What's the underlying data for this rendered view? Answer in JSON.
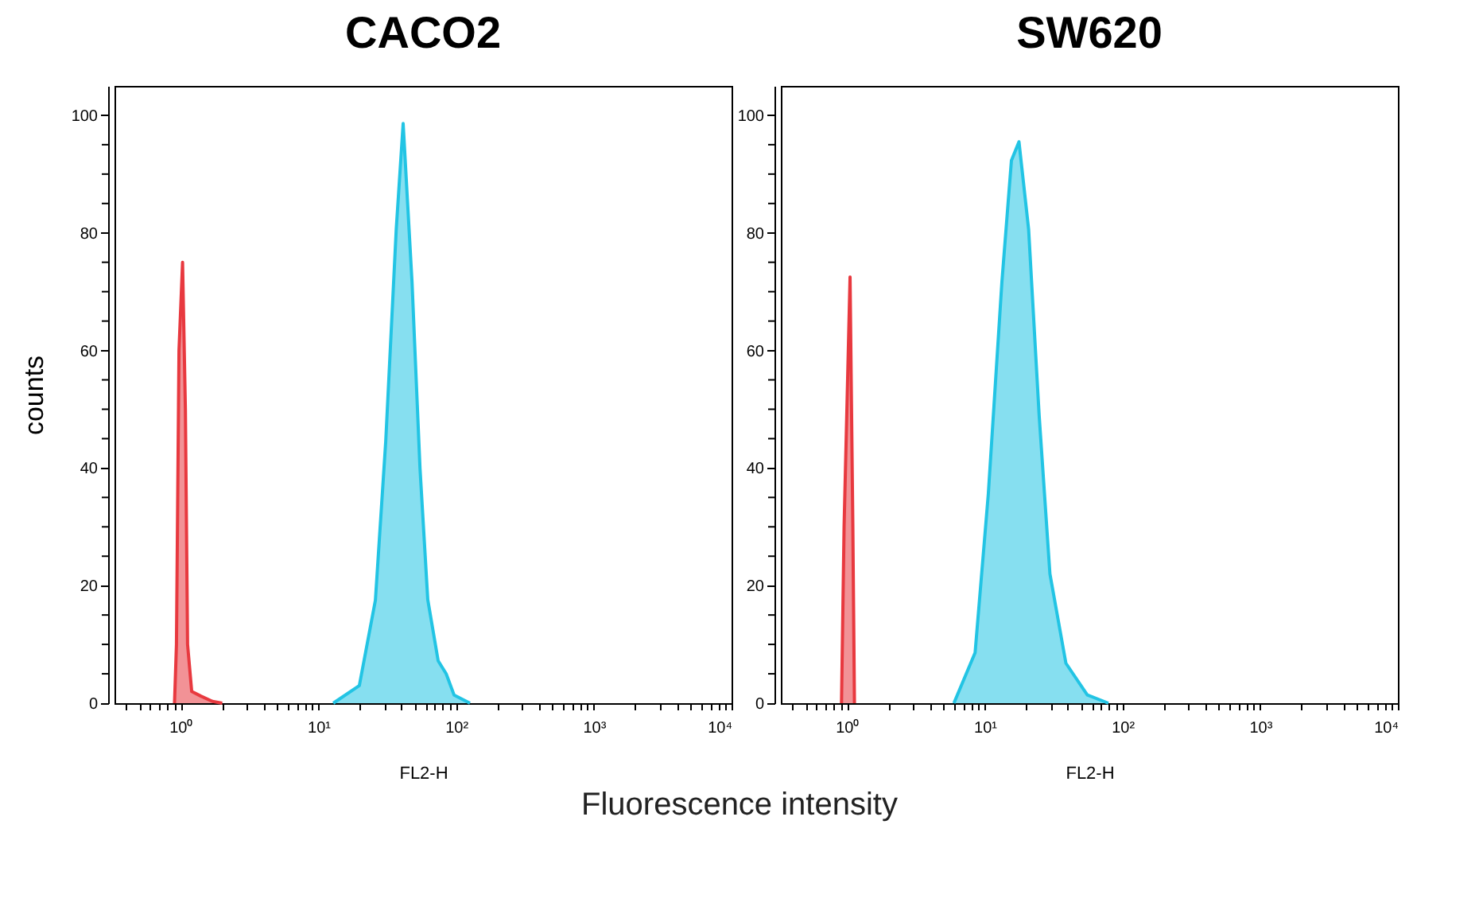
{
  "chart_data": [
    {
      "type": "area",
      "title": "CACO2",
      "xlabel": "FL2-H",
      "ylabel": "counts",
      "log": "x",
      "annotations": [
        "Fluorescence intensity"
      ],
      "xlim": [
        0.33,
        10000
      ],
      "ylim": [
        0,
        105
      ],
      "xticks": [
        {
          "value": 0.4,
          "label": null
        },
        {
          "value": 0.5,
          "label": null
        },
        {
          "value": 0.6,
          "label": null
        },
        {
          "value": 0.7,
          "label": null
        },
        {
          "value": 0.8,
          "label": null
        },
        {
          "value": 0.9,
          "label": null
        },
        {
          "value": 1,
          "label": "10⁰"
        },
        {
          "value": 2,
          "label": null
        },
        {
          "value": 3,
          "label": null
        },
        {
          "value": 4,
          "label": null
        },
        {
          "value": 5,
          "label": null
        },
        {
          "value": 6,
          "label": null
        },
        {
          "value": 7,
          "label": null
        },
        {
          "value": 8,
          "label": null
        },
        {
          "value": 9,
          "label": null
        },
        {
          "value": 10,
          "label": "10¹"
        },
        {
          "value": 20,
          "label": null
        },
        {
          "value": 30,
          "label": null
        },
        {
          "value": 40,
          "label": null
        },
        {
          "value": 50,
          "label": null
        },
        {
          "value": 60,
          "label": null
        },
        {
          "value": 70,
          "label": null
        },
        {
          "value": 80,
          "label": null
        },
        {
          "value": 90,
          "label": null
        },
        {
          "value": 100,
          "label": "10²"
        },
        {
          "value": 200,
          "label": null
        },
        {
          "value": 300,
          "label": null
        },
        {
          "value": 400,
          "label": null
        },
        {
          "value": 500,
          "label": null
        },
        {
          "value": 600,
          "label": null
        },
        {
          "value": 700,
          "label": null
        },
        {
          "value": 800,
          "label": null
        },
        {
          "value": 900,
          "label": null
        },
        {
          "value": 1000,
          "label": "10³"
        },
        {
          "value": 2000,
          "label": null
        },
        {
          "value": 3000,
          "label": null
        },
        {
          "value": 4000,
          "label": null
        },
        {
          "value": 5000,
          "label": null
        },
        {
          "value": 6000,
          "label": null
        },
        {
          "value": 7000,
          "label": null
        },
        {
          "value": 8000,
          "label": null
        },
        {
          "value": 9000,
          "label": null
        },
        {
          "value": 10000,
          "label": "10⁴"
        }
      ],
      "yticks": [
        0,
        {
          "value": 5,
          "label": null
        },
        {
          "value": 10,
          "label": null
        },
        {
          "value": 15,
          "label": null
        },
        20,
        {
          "value": 25,
          "label": null
        },
        {
          "value": 30,
          "label": null
        },
        {
          "value": 35,
          "label": null
        },
        40,
        {
          "value": 45,
          "label": null
        },
        {
          "value": 50,
          "label": null
        },
        {
          "value": 55,
          "label": null
        },
        60,
        {
          "value": 65,
          "label": null
        },
        {
          "value": 70,
          "label": null
        },
        {
          "value": 75,
          "label": null
        },
        80,
        {
          "value": 85,
          "label": null
        },
        {
          "value": 90,
          "label": null
        },
        {
          "value": 95,
          "label": null
        },
        100
      ],
      "series": [
        {
          "color": "#e8393f",
          "x": [
            0.9,
            0.93,
            0.97,
            1.03,
            1.08,
            1.12,
            1.2,
            1.4,
            1.7,
            2.0
          ],
          "values": [
            0,
            10,
            60,
            75,
            50,
            10,
            2,
            1.2,
            0.3,
            0
          ]
        },
        {
          "color": "#22c4e4",
          "x": [
            12.8,
            19.8,
            25.9,
            30.8,
            36.7,
            41.2,
            47.8,
            54.6,
            62.2,
            74,
            84.6,
            96.5,
            126
          ],
          "values": [
            0,
            3,
            17.5,
            44.6,
            80.6,
            98.6,
            71.6,
            40,
            17.6,
            7.2,
            5,
            1.4,
            0
          ]
        }
      ]
    },
    {
      "type": "area",
      "title": "SW620",
      "xlabel": "FL2-H",
      "log": "x",
      "xlim": [
        0.33,
        10000
      ],
      "ylim": [
        0,
        105
      ],
      "xticks": [
        {
          "value": 0.4,
          "label": null
        },
        {
          "value": 0.5,
          "label": null
        },
        {
          "value": 0.6,
          "label": null
        },
        {
          "value": 0.7,
          "label": null
        },
        {
          "value": 0.8,
          "label": null
        },
        {
          "value": 0.9,
          "label": null
        },
        {
          "value": 1,
          "label": "10⁰"
        },
        {
          "value": 2,
          "label": null
        },
        {
          "value": 3,
          "label": null
        },
        {
          "value": 4,
          "label": null
        },
        {
          "value": 5,
          "label": null
        },
        {
          "value": 6,
          "label": null
        },
        {
          "value": 7,
          "label": null
        },
        {
          "value": 8,
          "label": null
        },
        {
          "value": 9,
          "label": null
        },
        {
          "value": 10,
          "label": "10¹"
        },
        {
          "value": 20,
          "label": null
        },
        {
          "value": 30,
          "label": null
        },
        {
          "value": 40,
          "label": null
        },
        {
          "value": 50,
          "label": null
        },
        {
          "value": 60,
          "label": null
        },
        {
          "value": 70,
          "label": null
        },
        {
          "value": 80,
          "label": null
        },
        {
          "value": 90,
          "label": null
        },
        {
          "value": 100,
          "label": "10²"
        },
        {
          "value": 200,
          "label": null
        },
        {
          "value": 300,
          "label": null
        },
        {
          "value": 400,
          "label": null
        },
        {
          "value": 500,
          "label": null
        },
        {
          "value": 600,
          "label": null
        },
        {
          "value": 700,
          "label": null
        },
        {
          "value": 800,
          "label": null
        },
        {
          "value": 900,
          "label": null
        },
        {
          "value": 1000,
          "label": "10³"
        },
        {
          "value": 2000,
          "label": null
        },
        {
          "value": 3000,
          "label": null
        },
        {
          "value": 4000,
          "label": null
        },
        {
          "value": 5000,
          "label": null
        },
        {
          "value": 6000,
          "label": null
        },
        {
          "value": 7000,
          "label": null
        },
        {
          "value": 8000,
          "label": null
        },
        {
          "value": 9000,
          "label": null
        },
        {
          "value": 10000,
          "label": "10⁴"
        }
      ],
      "yticks": [
        0,
        {
          "value": 5,
          "label": null
        },
        {
          "value": 10,
          "label": null
        },
        {
          "value": 15,
          "label": null
        },
        20,
        {
          "value": 25,
          "label": null
        },
        {
          "value": 30,
          "label": null
        },
        {
          "value": 35,
          "label": null
        },
        40,
        {
          "value": 45,
          "label": null
        },
        {
          "value": 50,
          "label": null
        },
        {
          "value": 55,
          "label": null
        },
        60,
        {
          "value": 65,
          "label": null
        },
        {
          "value": 70,
          "label": null
        },
        {
          "value": 75,
          "label": null
        },
        80,
        {
          "value": 85,
          "label": null
        },
        {
          "value": 90,
          "label": null
        },
        {
          "value": 95,
          "label": null
        },
        100
      ],
      "series": [
        {
          "color": "#e8393f",
          "x": [
            0.91,
            0.95,
            1.05,
            1.1,
            1.13
          ],
          "values": [
            0,
            30,
            72.5,
            30,
            0
          ]
        },
        {
          "color": "#22c4e4",
          "x": [
            5.96,
            8.5,
            10.6,
            13.3,
            15.6,
            17.7,
            20.8,
            24.8,
            29.7,
            38.8,
            55.5,
            79
          ],
          "values": [
            0,
            8.6,
            35.6,
            71.6,
            92.3,
            95.5,
            80.6,
            49,
            22,
            6.8,
            1.4,
            0
          ]
        }
      ]
    }
  ]
}
